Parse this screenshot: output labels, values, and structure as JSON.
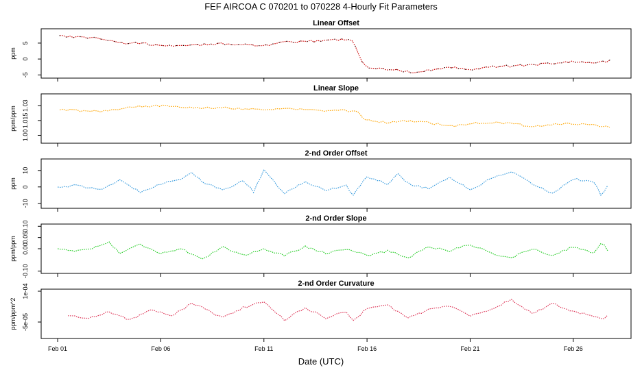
{
  "title": "FEF   AIRCOA C   070201 to 070228   4-Hourly Fit Parameters",
  "xlabel": "Date (UTC)",
  "x_axis": {
    "unit": "day of February 2007",
    "range": [
      0.2,
      28.8
    ],
    "ticks": [
      1,
      6,
      11,
      16,
      21,
      26
    ],
    "tick_labels": [
      "Feb 01",
      "Feb 06",
      "Feb 11",
      "Feb 16",
      "Feb 21",
      "Feb 26"
    ]
  },
  "chart_data": [
    {
      "type": "line",
      "title": "Linear Offset",
      "ylabel": "ppm",
      "ylim": [
        -6,
        9.5
      ],
      "yticks": [
        -5,
        0,
        5
      ],
      "ytick_labels": [
        "-5",
        "0",
        "5"
      ],
      "grid": false,
      "series": [
        {
          "color": "#cc0000",
          "marker_color": "#000000",
          "x": [
            1.1,
            1.6,
            2.5,
            3.5,
            4.0,
            5.0,
            6.0,
            7.0,
            8.0,
            9.0,
            10.0,
            11.0,
            12.0,
            13.0,
            14.0,
            14.8,
            15.3,
            15.5,
            15.8,
            16.2,
            17.0,
            18.0,
            18.5,
            19.0,
            20.0,
            21.0,
            22.0,
            23.0,
            24.0,
            25.0,
            26.0,
            27.0,
            27.8
          ],
          "y": [
            7.5,
            7.0,
            6.8,
            6.0,
            5.0,
            5.0,
            4.2,
            4.0,
            4.5,
            4.8,
            4.6,
            4.2,
            5.2,
            5.5,
            5.8,
            6.2,
            6.0,
            3.0,
            -1.5,
            -3.0,
            -3.2,
            -4.0,
            -4.2,
            -3.5,
            -2.5,
            -3.2,
            -2.5,
            -2.2,
            -1.8,
            -1.3,
            -0.8,
            -1.2,
            -0.6
          ]
        }
      ]
    },
    {
      "type": "line",
      "title": "Linear Slope",
      "ylabel": "ppm/ppm",
      "ylim": [
        0.992,
        1.042
      ],
      "yticks": [
        1.0,
        1.015,
        1.03
      ],
      "ytick_labels": [
        "1.00",
        "1.015",
        "1.03"
      ],
      "grid": false,
      "series": [
        {
          "color": "#ffa500",
          "x": [
            1.1,
            2.0,
            3.0,
            4.0,
            5.0,
            6.0,
            7.0,
            8.0,
            9.0,
            10.0,
            11.0,
            12.0,
            13.0,
            14.0,
            15.0,
            15.5,
            16.0,
            17.0,
            18.0,
            19.0,
            20.0,
            21.0,
            22.0,
            23.0,
            24.0,
            25.0,
            26.0,
            27.0,
            27.8
          ],
          "y": [
            1.026,
            1.025,
            1.024,
            1.027,
            1.029,
            1.03,
            1.029,
            1.028,
            1.028,
            1.027,
            1.026,
            1.027,
            1.026,
            1.025,
            1.025,
            1.024,
            1.015,
            1.013,
            1.015,
            1.013,
            1.009,
            1.012,
            1.013,
            1.012,
            1.009,
            1.011,
            1.012,
            1.01,
            1.008
          ]
        }
      ]
    },
    {
      "type": "line",
      "title": "2-nd Order Offset",
      "ylabel": "ppm",
      "ylim": [
        -13,
        17
      ],
      "yticks": [
        -10,
        0,
        10
      ],
      "ytick_labels": [
        "-10",
        "0",
        "10"
      ],
      "grid": false,
      "series": [
        {
          "color": "#3399dd",
          "x": [
            1.0,
            2.0,
            3.0,
            4.0,
            5.0,
            6.0,
            7.0,
            7.5,
            8.0,
            9.0,
            10.0,
            10.5,
            11.0,
            12.0,
            13.0,
            14.0,
            15.0,
            15.3,
            16.0,
            17.0,
            17.5,
            18.0,
            19.0,
            20.0,
            21.0,
            22.0,
            23.0,
            24.0,
            25.0,
            26.0,
            27.0,
            27.4,
            27.8
          ],
          "y": [
            0,
            1,
            -2,
            4,
            -3,
            2,
            5,
            9,
            3,
            -2,
            4,
            -3,
            10,
            -4,
            3,
            -2,
            1,
            -5,
            6,
            2,
            8,
            2,
            -1,
            6,
            -2,
            5,
            9,
            2,
            -4,
            5,
            3,
            -6,
            5
          ]
        }
      ]
    },
    {
      "type": "line",
      "title": "2-nd Order Slope",
      "ylabel": "ppm/ppm",
      "ylim": [
        -0.11,
        0.11
      ],
      "yticks": [
        -0.1,
        0.0,
        0.05,
        0.1
      ],
      "ytick_labels": [
        "-0.10",
        "0.00",
        "0.05",
        "0.10"
      ],
      "grid": false,
      "series": [
        {
          "color": "#22cc22",
          "x": [
            1.0,
            2.0,
            3.0,
            3.5,
            4.0,
            5.0,
            6.0,
            7.0,
            8.0,
            9.0,
            10.0,
            11.0,
            12.0,
            13.0,
            14.0,
            15.0,
            16.0,
            17.0,
            18.0,
            19.0,
            20.0,
            21.0,
            22.0,
            23.0,
            24.0,
            25.0,
            26.0,
            27.0,
            27.4,
            27.8
          ],
          "y": [
            0.0,
            -0.01,
            0.01,
            0.03,
            -0.02,
            0.02,
            -0.02,
            0.0,
            -0.05,
            0.01,
            -0.03,
            0.0,
            -0.03,
            0.01,
            -0.02,
            0.0,
            -0.03,
            -0.01,
            -0.04,
            0.01,
            -0.01,
            0.02,
            -0.02,
            -0.04,
            0.0,
            -0.03,
            0.01,
            -0.02,
            0.03,
            -0.03
          ]
        }
      ]
    },
    {
      "type": "line",
      "title": "2-nd Order Curvature",
      "ylabel": "ppm/ppm^2",
      "ylim": [
        -0.00013,
        0.00011
      ],
      "yticks": [
        -5e-05,
        0.0001
      ],
      "ytick_labels": [
        "-5e-05",
        "1e-04"
      ],
      "grid": false,
      "series": [
        {
          "color": "#dd3355",
          "x": [
            1.5,
            2.5,
            3.5,
            4.5,
            5.5,
            6.5,
            7.5,
            8.0,
            9.0,
            10.0,
            11.0,
            12.0,
            13.0,
            14.0,
            15.0,
            15.3,
            16.0,
            17.0,
            18.0,
            19.0,
            20.0,
            21.0,
            22.0,
            23.0,
            24.0,
            25.0,
            26.0,
            27.0,
            27.4,
            27.8
          ],
          "y": [
            -2e-05,
            -3e-05,
            0.0,
            -4e-05,
            1e-05,
            -2e-05,
            4e-05,
            2e-05,
            -3e-05,
            2e-05,
            5e-05,
            -4e-05,
            2e-05,
            -3e-05,
            0.0,
            -5e-05,
            2e-05,
            3e-05,
            -3e-05,
            1e-05,
            3e-05,
            -2e-05,
            1e-05,
            6e-05,
            -1e-05,
            4e-05,
            0.0,
            -2e-05,
            -4e-05,
            0.0
          ]
        }
      ]
    }
  ]
}
